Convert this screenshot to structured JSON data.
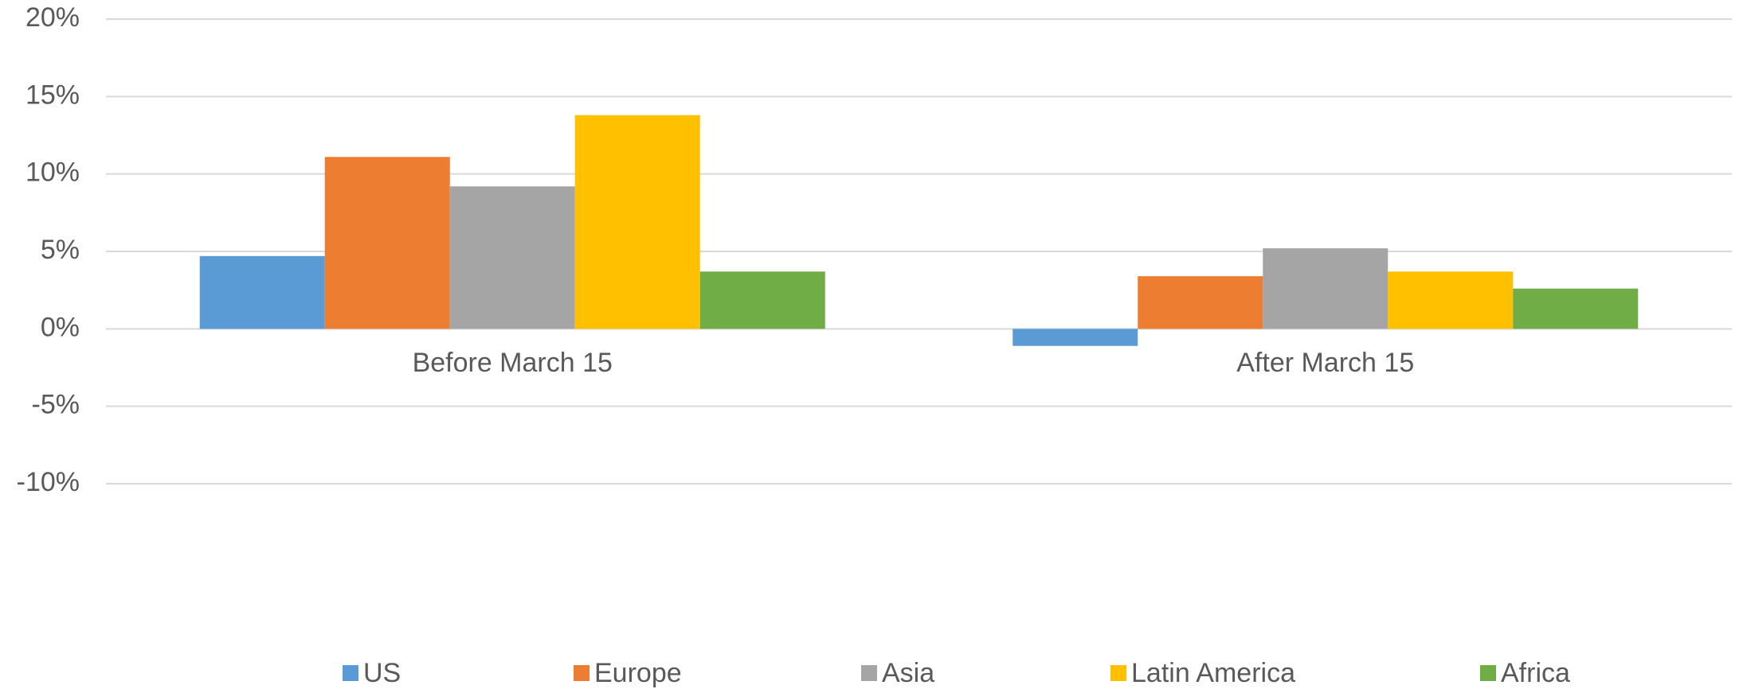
{
  "chart_data": {
    "type": "bar",
    "categories": [
      "Before March 15",
      "After March 15"
    ],
    "series": [
      {
        "name": "US",
        "color": "#5b9bd5",
        "values": [
          4.7,
          -1.1
        ]
      },
      {
        "name": "Europe",
        "color": "#ed7d31",
        "values": [
          11.1,
          3.4
        ]
      },
      {
        "name": "Asia",
        "color": "#a5a5a5",
        "values": [
          9.2,
          5.2
        ]
      },
      {
        "name": "Latin America",
        "color": "#ffc000",
        "values": [
          13.8,
          3.7
        ]
      },
      {
        "name": "Africa",
        "color": "#70ad47",
        "values": [
          3.7,
          2.6
        ]
      }
    ],
    "ylim": [
      -10,
      20
    ],
    "yticks": [
      {
        "value": -10,
        "label": "-10%"
      },
      {
        "value": -5,
        "label": "-5%"
      },
      {
        "value": 0,
        "label": "0%"
      },
      {
        "value": 5,
        "label": "5%"
      },
      {
        "value": 10,
        "label": "10%"
      },
      {
        "value": 15,
        "label": "15%"
      },
      {
        "value": 20,
        "label": "20%"
      }
    ],
    "grid": true,
    "legend": "bottom"
  }
}
